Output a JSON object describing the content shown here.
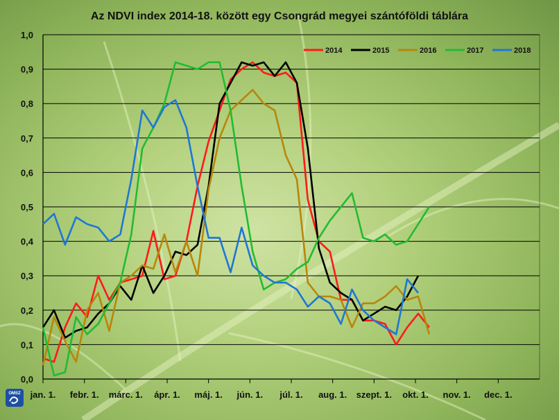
{
  "logo_text": "OMSZ",
  "chart_data": {
    "type": "line",
    "title": "Az NDVI index 2014-18. között egy Csongrád megyei szántóföldi táblára",
    "xlabel": "",
    "ylabel": "",
    "ylim": [
      0,
      1
    ],
    "yticks": [
      "0,0",
      "0,1",
      "0,2",
      "0,3",
      "0,4",
      "0,5",
      "0,6",
      "0,7",
      "0,8",
      "0,9",
      "1,0"
    ],
    "xticks": [
      "jan. 1.",
      "febr. 1.",
      "márc. 1.",
      "ápr. 1.",
      "máj. 1.",
      "jún. 1.",
      "júl. 1.",
      "aug. 1.",
      "szept. 1.",
      "okt. 1.",
      "nov. 1.",
      "dec. 1."
    ],
    "x_periods": 45,
    "grid": true,
    "legend_position": "top-right",
    "series": [
      {
        "name": "2014",
        "color": "#ff1a1a",
        "values": [
          0.06,
          0.05,
          0.15,
          0.22,
          0.18,
          0.3,
          0.23,
          0.28,
          0.29,
          0.3,
          0.43,
          0.29,
          0.3,
          0.4,
          0.56,
          0.69,
          0.78,
          0.87,
          0.9,
          0.92,
          0.89,
          0.88,
          0.89,
          0.86,
          0.52,
          0.4,
          0.37,
          0.23,
          0.23,
          0.17,
          0.17,
          0.16,
          0.1,
          0.15,
          0.19,
          0.15
        ]
      },
      {
        "name": "2015",
        "color": "#000000",
        "values": [
          0.15,
          0.2,
          0.12,
          0.14,
          0.15,
          0.19,
          0.22,
          0.27,
          0.23,
          0.33,
          0.25,
          0.3,
          0.37,
          0.36,
          0.39,
          0.56,
          0.8,
          0.86,
          0.92,
          0.91,
          0.92,
          0.88,
          0.92,
          0.86,
          0.67,
          0.38,
          0.28,
          0.25,
          0.23,
          0.17,
          0.19,
          0.21,
          0.2,
          0.24,
          0.3
        ]
      },
      {
        "name": "2016",
        "color": "#b8860b",
        "values": [
          0.04,
          0.18,
          0.11,
          0.05,
          0.2,
          0.25,
          0.14,
          0.28,
          0.3,
          0.33,
          0.32,
          0.42,
          0.31,
          0.4,
          0.3,
          0.55,
          0.7,
          0.78,
          0.81,
          0.84,
          0.8,
          0.78,
          0.65,
          0.58,
          0.28,
          0.24,
          0.24,
          0.23,
          0.15,
          0.22,
          0.22,
          0.24,
          0.27,
          0.23,
          0.24,
          0.13
        ]
      },
      {
        "name": "2017",
        "color": "#22bb33",
        "values": [
          0.15,
          0.01,
          0.02,
          0.18,
          0.13,
          0.16,
          0.22,
          0.28,
          0.42,
          0.67,
          0.73,
          0.8,
          0.92,
          0.91,
          0.9,
          0.92,
          0.92,
          0.78,
          0.56,
          0.37,
          0.26,
          0.28,
          0.29,
          0.32,
          0.34,
          0.41,
          0.46,
          0.5,
          0.54,
          0.41,
          0.4,
          0.42,
          0.39,
          0.4,
          0.45,
          0.5
        ]
      },
      {
        "name": "2018",
        "color": "#1f77d4",
        "values": [
          0.45,
          0.48,
          0.39,
          0.47,
          0.45,
          0.44,
          0.4,
          0.42,
          0.58,
          0.78,
          0.73,
          0.79,
          0.81,
          0.73,
          0.56,
          0.41,
          0.41,
          0.31,
          0.44,
          0.33,
          0.3,
          0.28,
          0.28,
          0.26,
          0.21,
          0.24,
          0.22,
          0.16,
          0.26,
          0.2,
          0.17,
          0.15,
          0.13,
          0.29,
          0.25
        ]
      }
    ]
  }
}
